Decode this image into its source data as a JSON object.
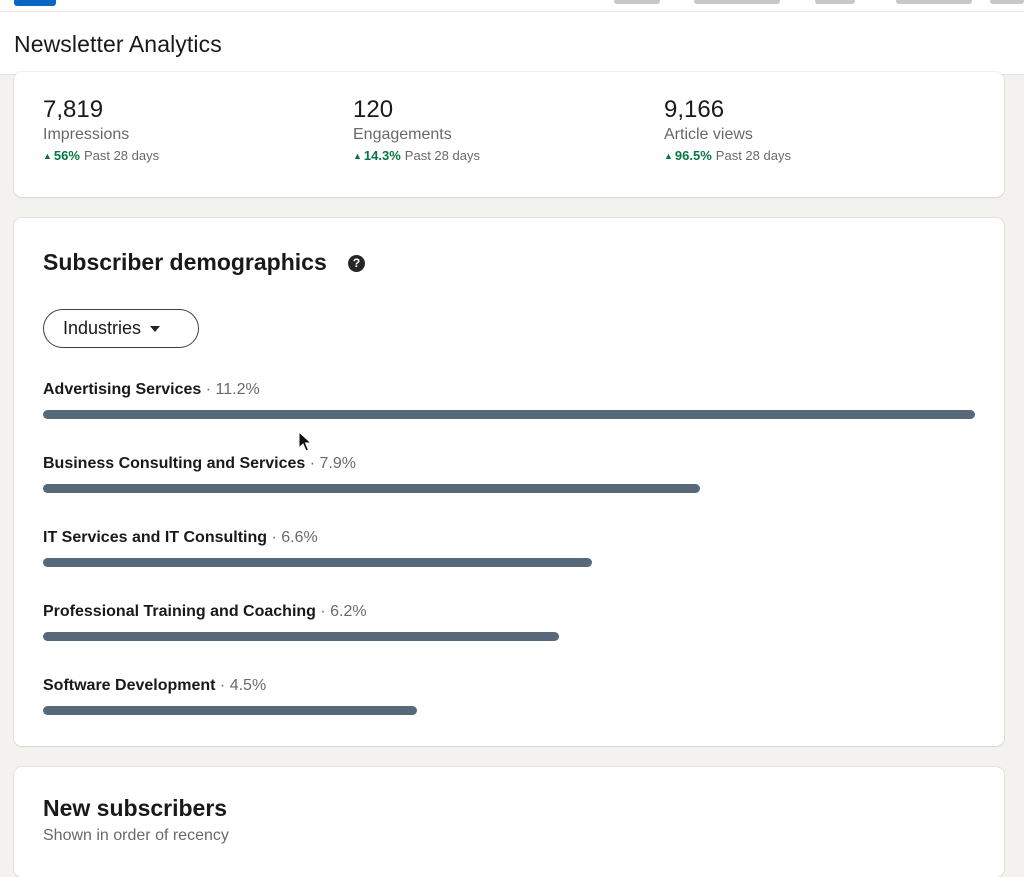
{
  "header": {
    "title": "Newsletter Analytics"
  },
  "metrics": [
    {
      "value": "7,819",
      "label": "Impressions",
      "change": "56%",
      "period": "Past 28 days"
    },
    {
      "value": "120",
      "label": "Engagements",
      "change": "14.3%",
      "period": "Past 28 days"
    },
    {
      "value": "9,166",
      "label": "Article views",
      "change": "96.5%",
      "period": "Past 28 days"
    }
  ],
  "demographics": {
    "title": "Subscriber demographics",
    "help_icon": "question-mark-circle-icon",
    "dropdown_label": "Industries",
    "dropdown_icon": "caret-down-icon",
    "bar_color": "#56687a",
    "items": [
      {
        "name": "Advertising Services",
        "pct_label": " · 11.2%",
        "pct": 11.2
      },
      {
        "name": "Business Consulting and Services",
        "pct_label": " · 7.9%",
        "pct": 7.9
      },
      {
        "name": "IT Services and IT Consulting",
        "pct_label": " · 6.6%",
        "pct": 6.6
      },
      {
        "name": "Professional Training and Coaching",
        "pct_label": " · 6.2%",
        "pct": 6.2
      },
      {
        "name": "Software Development",
        "pct_label": " · 4.5%",
        "pct": 4.5
      }
    ]
  },
  "subscribers": {
    "title": "New subscribers",
    "subtitle": "Shown in order of recency"
  },
  "colors": {
    "accent_positive": "#057642",
    "brand": "#0a66c2"
  }
}
